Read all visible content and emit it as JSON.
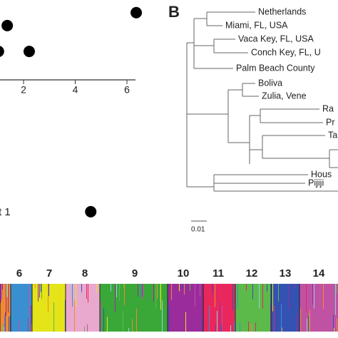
{
  "panel_a": {
    "xticks": [
      2,
      4,
      6
    ],
    "xlabel": "t 1",
    "points": [
      {
        "x": 6.36,
        "y": 2.6
      },
      {
        "x": 1.37,
        "y": 2.1
      },
      {
        "x": 1.03,
        "y": 1.1
      },
      {
        "x": 2.22,
        "y": 1.1
      },
      {
        "x": 4.6,
        "y": -5.1
      }
    ]
  },
  "panel_b": {
    "label": "B",
    "tips": [
      "Netherlands",
      "Miami, FL, USA",
      "Vaca Key, FL, USA",
      "Conch Key, FL, U",
      "Palm Beach County",
      "Boliva",
      "Zulia, Vene",
      "Ra",
      "Pr",
      "Ta",
      "Hous",
      "Pijiji"
    ],
    "scale_label": "0.01"
  },
  "panel_c": {
    "clusters": [
      6,
      7,
      8,
      9,
      10,
      11,
      12,
      13,
      14
    ]
  }
}
